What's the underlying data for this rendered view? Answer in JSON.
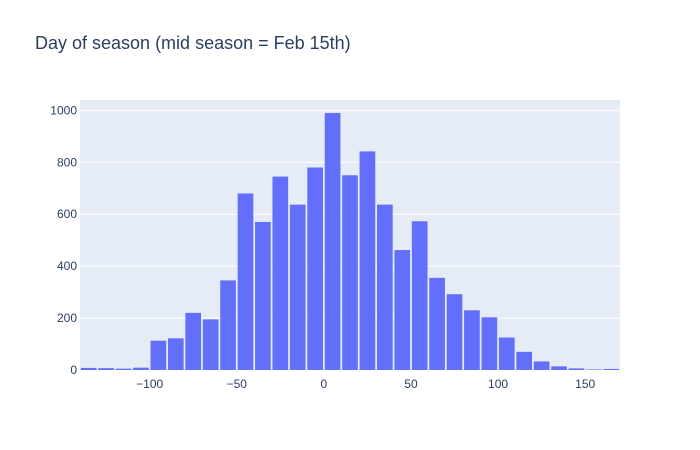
{
  "chart_data": {
    "type": "bar",
    "title": "Day of season (mid season = Feb 15th)",
    "xlabel": "",
    "ylabel": "",
    "bin_width": 10,
    "x": [
      -135,
      -125,
      -115,
      -105,
      -95,
      -85,
      -75,
      -65,
      -55,
      -45,
      -35,
      -25,
      -15,
      -5,
      5,
      15,
      25,
      35,
      45,
      55,
      65,
      75,
      85,
      95,
      105,
      115,
      125,
      135,
      145,
      155,
      165
    ],
    "values": [
      8,
      7,
      5,
      9,
      113,
      122,
      220,
      195,
      345,
      680,
      570,
      745,
      637,
      780,
      990,
      750,
      842,
      637,
      462,
      573,
      355,
      292,
      230,
      203,
      125,
      70,
      33,
      14,
      6,
      2,
      4
    ],
    "xlim": [
      -140,
      170
    ],
    "ylim": [
      0,
      1040
    ],
    "x_ticks": [
      -100,
      -50,
      0,
      50,
      100,
      150
    ],
    "x_tick_labels": [
      "−100",
      "−50",
      "0",
      "50",
      "100",
      "150"
    ],
    "y_ticks": [
      0,
      200,
      400,
      600,
      800,
      1000
    ],
    "y_tick_labels": [
      "0",
      "200",
      "400",
      "600",
      "800",
      "1000"
    ],
    "grid": true,
    "colors": {
      "bar": "#636efa",
      "plot_bg": "#e5ecf6",
      "grid": "#ffffff",
      "text": "#2a3f5f"
    }
  }
}
